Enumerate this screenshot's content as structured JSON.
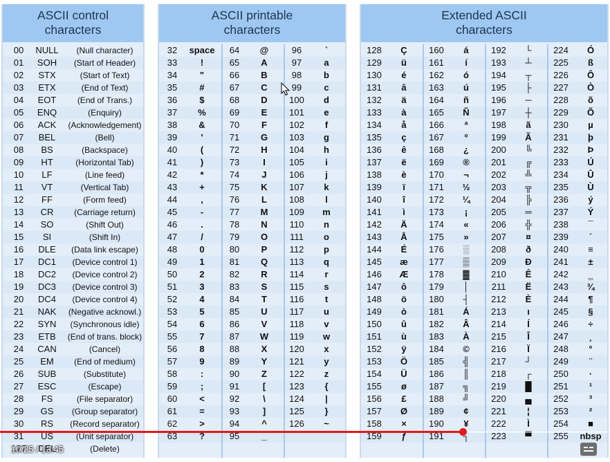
{
  "panels": [
    {
      "title_line1": "ASCII control",
      "title_line2": "characters",
      "rows": [
        [
          "00",
          "NULL",
          "(Null character)"
        ],
        [
          "01",
          "SOH",
          "(Start of Header)"
        ],
        [
          "02",
          "STX",
          "(Start of Text)"
        ],
        [
          "03",
          "ETX",
          "(End of Text)"
        ],
        [
          "04",
          "EOT",
          "(End of Trans.)"
        ],
        [
          "05",
          "ENQ",
          "(Enquiry)"
        ],
        [
          "06",
          "ACK",
          "(Acknowledgement)"
        ],
        [
          "07",
          "BEL",
          "(Bell)"
        ],
        [
          "08",
          "BS",
          "(Backspace)"
        ],
        [
          "09",
          "HT",
          "(Horizontal Tab)"
        ],
        [
          "10",
          "LF",
          "(Line feed)"
        ],
        [
          "11",
          "VT",
          "(Vertical Tab)"
        ],
        [
          "12",
          "FF",
          "(Form feed)"
        ],
        [
          "13",
          "CR",
          "(Carriage return)"
        ],
        [
          "14",
          "SO",
          "(Shift Out)"
        ],
        [
          "15",
          "SI",
          "(Shift In)"
        ],
        [
          "16",
          "DLE",
          "(Data link escape)"
        ],
        [
          "17",
          "DC1",
          "(Device control 1)"
        ],
        [
          "18",
          "DC2",
          "(Device control 2)"
        ],
        [
          "19",
          "DC3",
          "(Device control 3)"
        ],
        [
          "20",
          "DC4",
          "(Device control 4)"
        ],
        [
          "21",
          "NAK",
          "(Negative acknowl.)"
        ],
        [
          "22",
          "SYN",
          "(Synchronous idle)"
        ],
        [
          "23",
          "ETB",
          "(End of trans. block)"
        ],
        [
          "24",
          "CAN",
          "(Cancel)"
        ],
        [
          "25",
          "EM",
          "(End of medium)"
        ],
        [
          "26",
          "SUB",
          "(Substitute)"
        ],
        [
          "27",
          "ESC",
          "(Escape)"
        ],
        [
          "28",
          "FS",
          "(File separator)"
        ],
        [
          "29",
          "GS",
          "(Group separator)"
        ],
        [
          "30",
          "RS",
          "(Record separator)"
        ],
        [
          "31",
          "US",
          "(Unit separator)"
        ],
        [
          "127",
          "DEL",
          "(Delete)"
        ]
      ]
    },
    {
      "title_line1": "ASCII printable",
      "title_line2": "characters",
      "rows": [
        [
          "32",
          "space",
          "64",
          "@",
          "96",
          "`"
        ],
        [
          "33",
          "!",
          "65",
          "A",
          "97",
          "a"
        ],
        [
          "34",
          "\"",
          "66",
          "B",
          "98",
          "b"
        ],
        [
          "35",
          "#",
          "67",
          "C",
          "99",
          "c"
        ],
        [
          "36",
          "$",
          "68",
          "D",
          "100",
          "d"
        ],
        [
          "37",
          "%",
          "69",
          "E",
          "101",
          "e"
        ],
        [
          "38",
          "&",
          "70",
          "F",
          "102",
          "f"
        ],
        [
          "39",
          "'",
          "71",
          "G",
          "103",
          "g"
        ],
        [
          "40",
          "(",
          "72",
          "H",
          "104",
          "h"
        ],
        [
          "41",
          ")",
          "73",
          "I",
          "105",
          "i"
        ],
        [
          "42",
          "*",
          "74",
          "J",
          "106",
          "j"
        ],
        [
          "43",
          "+",
          "75",
          "K",
          "107",
          "k"
        ],
        [
          "44",
          ",",
          "76",
          "L",
          "108",
          "l"
        ],
        [
          "45",
          "-",
          "77",
          "M",
          "109",
          "m"
        ],
        [
          "46",
          ".",
          "78",
          "N",
          "110",
          "n"
        ],
        [
          "47",
          "/",
          "79",
          "O",
          "111",
          "o"
        ],
        [
          "48",
          "0",
          "80",
          "P",
          "112",
          "p"
        ],
        [
          "49",
          "1",
          "81",
          "Q",
          "113",
          "q"
        ],
        [
          "50",
          "2",
          "82",
          "R",
          "114",
          "r"
        ],
        [
          "51",
          "3",
          "83",
          "S",
          "115",
          "s"
        ],
        [
          "52",
          "4",
          "84",
          "T",
          "116",
          "t"
        ],
        [
          "53",
          "5",
          "85",
          "U",
          "117",
          "u"
        ],
        [
          "54",
          "6",
          "86",
          "V",
          "118",
          "v"
        ],
        [
          "55",
          "7",
          "87",
          "W",
          "119",
          "w"
        ],
        [
          "56",
          "8",
          "88",
          "X",
          "120",
          "x"
        ],
        [
          "57",
          "9",
          "89",
          "Y",
          "121",
          "y"
        ],
        [
          "58",
          ":",
          "90",
          "Z",
          "122",
          "z"
        ],
        [
          "59",
          ";",
          "91",
          "[",
          "123",
          "{"
        ],
        [
          "60",
          "<",
          "92",
          "\\",
          "124",
          "|"
        ],
        [
          "61",
          "=",
          "93",
          "]",
          "125",
          "}"
        ],
        [
          "62",
          ">",
          "94",
          "^",
          "126",
          "~"
        ],
        [
          "63",
          "?",
          "95",
          "_",
          "",
          ""
        ]
      ]
    },
    {
      "title_line1": "Extended ASCII",
      "title_line2": "characters",
      "rows": [
        [
          "128",
          "Ç",
          "160",
          "á",
          "192",
          "└",
          "224",
          "Ó"
        ],
        [
          "129",
          "ü",
          "161",
          "í",
          "193",
          "┴",
          "225",
          "ß"
        ],
        [
          "130",
          "é",
          "162",
          "ó",
          "194",
          "┬",
          "226",
          "Ô"
        ],
        [
          "131",
          "â",
          "163",
          "ú",
          "195",
          "├",
          "227",
          "Ò"
        ],
        [
          "132",
          "ä",
          "164",
          "ñ",
          "196",
          "─",
          "228",
          "õ"
        ],
        [
          "133",
          "à",
          "165",
          "Ñ",
          "197",
          "┼",
          "229",
          "Õ"
        ],
        [
          "134",
          "å",
          "166",
          "ª",
          "198",
          "ã",
          "230",
          "µ"
        ],
        [
          "135",
          "ç",
          "167",
          "º",
          "199",
          "Ã",
          "231",
          "þ"
        ],
        [
          "136",
          "ê",
          "168",
          "¿",
          "200",
          "╚",
          "232",
          "Þ"
        ],
        [
          "137",
          "ë",
          "169",
          "®",
          "201",
          "╔",
          "233",
          "Ú"
        ],
        [
          "138",
          "è",
          "170",
          "¬",
          "202",
          "╩",
          "234",
          "Û"
        ],
        [
          "139",
          "ï",
          "171",
          "½",
          "203",
          "╦",
          "235",
          "Ù"
        ],
        [
          "140",
          "î",
          "172",
          "¼",
          "204",
          "╠",
          "236",
          "ý"
        ],
        [
          "141",
          "ì",
          "173",
          "¡",
          "205",
          "═",
          "237",
          "Ý"
        ],
        [
          "142",
          "Ä",
          "174",
          "«",
          "206",
          "╬",
          "238",
          "¯"
        ],
        [
          "143",
          "Å",
          "175",
          "»",
          "207",
          "¤",
          "239",
          "´"
        ],
        [
          "144",
          "É",
          "176",
          "░",
          "208",
          "ð",
          "240",
          "≡"
        ],
        [
          "145",
          "æ",
          "177",
          "▒",
          "209",
          "Ð",
          "241",
          "±"
        ],
        [
          "146",
          "Æ",
          "178",
          "▓",
          "210",
          "Ê",
          "242",
          "‗"
        ],
        [
          "147",
          "ô",
          "179",
          "│",
          "211",
          "Ë",
          "243",
          "¾"
        ],
        [
          "148",
          "ö",
          "180",
          "┤",
          "212",
          "È",
          "244",
          "¶"
        ],
        [
          "149",
          "ò",
          "181",
          "Á",
          "213",
          "ı",
          "245",
          "§"
        ],
        [
          "150",
          "û",
          "182",
          "Â",
          "214",
          "Í",
          "246",
          "÷"
        ],
        [
          "151",
          "ù",
          "183",
          "À",
          "215",
          "Î",
          "247",
          "¸"
        ],
        [
          "152",
          "ÿ",
          "184",
          "©",
          "216",
          "Ï",
          "248",
          "°"
        ],
        [
          "153",
          "Ö",
          "185",
          "╣",
          "217",
          "┘",
          "249",
          "¨"
        ],
        [
          "154",
          "Ü",
          "186",
          "║",
          "218",
          "┌",
          "250",
          "·"
        ],
        [
          "155",
          "ø",
          "187",
          "╗",
          "219",
          "█",
          "251",
          "¹"
        ],
        [
          "156",
          "£",
          "188",
          "╝",
          "220",
          "▄",
          "252",
          "³"
        ],
        [
          "157",
          "Ø",
          "189",
          "¢",
          "221",
          "¦",
          "253",
          "²"
        ],
        [
          "158",
          "×",
          "190",
          "¥",
          "222",
          "Ì",
          "254",
          "■"
        ],
        [
          "159",
          "ƒ",
          "191",
          "┐",
          "223",
          "▀",
          "255",
          "nbsp"
        ]
      ]
    }
  ],
  "player": {
    "time": "10:25 / 13:45",
    "progress_fraction": 0.758,
    "accent_color": "#e01b1b",
    "captions_icon": "captions-icon"
  }
}
